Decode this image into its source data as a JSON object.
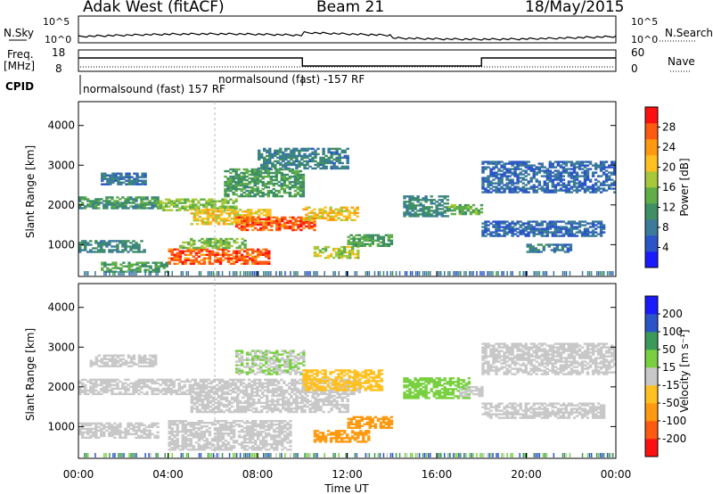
{
  "header": {
    "station": "Adak West (fitACF)",
    "beam": "Beam 21",
    "date": "18/May/2015"
  },
  "summary_panels": {
    "nsky_label": "N.Sky",
    "nsearch_label": "N.Search",
    "noise_ticks": [
      "10^5",
      "10^0"
    ],
    "freq_label": "Freq.",
    "freq_unit": "[MHz]",
    "freq_ticks": [
      "18",
      "8"
    ],
    "nave_label": "Nave",
    "nave_ticks": [
      "60",
      "0"
    ],
    "cpid_label": "CPID",
    "cpid_segments": [
      {
        "text": "normalsound (fast) 157 RF",
        "start_hour": 0,
        "end_hour": 10
      },
      {
        "text": "normalsound (fast) -157 RF",
        "start_hour": 10,
        "end_hour": 18
      }
    ],
    "freq_steps": [
      {
        "from_hour": 0,
        "to_hour": 10,
        "level": "high"
      },
      {
        "from_hour": 10,
        "to_hour": 18,
        "level": "low"
      },
      {
        "from_hour": 18,
        "to_hour": 24,
        "level": "high"
      }
    ]
  },
  "colors": {
    "power_scale": [
      "#1a1aff",
      "#2a55c8",
      "#3a7a9a",
      "#3e8f64",
      "#5fae48",
      "#a8c83a",
      "#ffc020",
      "#ff9a10",
      "#ff5a10",
      "#ff1010"
    ],
    "velocity_scale": [
      "#ff1010",
      "#ff5a10",
      "#ff9a10",
      "#ffc020",
      "#c8c8c8",
      "#78d040",
      "#3a9a58",
      "#2a55c8",
      "#1a1aff"
    ],
    "ground_scatter": "#c8c8c8"
  },
  "chart_data": [
    {
      "type": "heatmap",
      "name": "Power",
      "ylabel": "Slant Range [km]",
      "ylim": [
        200,
        4600
      ],
      "yticks": [
        1000,
        2000,
        3000,
        4000
      ],
      "xlim": [
        0,
        24
      ],
      "colorbar_label": "Power [dB]",
      "colorbar_ticks": [
        "4",
        "8",
        "12",
        "16",
        "20",
        "24",
        "28"
      ],
      "colorbar_range": [
        0,
        30
      ],
      "echo_bands": [
        {
          "t0": 0.0,
          "t1": 3.5,
          "r0": 1900,
          "r1": 2200,
          "value": 9
        },
        {
          "t0": 1.0,
          "t1": 3.0,
          "r0": 2500,
          "r1": 2800,
          "value": 6
        },
        {
          "t0": 3.5,
          "t1": 7.0,
          "r0": 1850,
          "r1": 2150,
          "value": 14
        },
        {
          "t0": 5.0,
          "t1": 8.5,
          "r0": 1500,
          "r1": 1900,
          "value": 18
        },
        {
          "t0": 7.0,
          "t1": 10.5,
          "r0": 1350,
          "r1": 1700,
          "value": 24
        },
        {
          "t0": 10.0,
          "t1": 12.5,
          "r0": 1600,
          "r1": 1950,
          "value": 18
        },
        {
          "t0": 6.5,
          "t1": 10.0,
          "r0": 2200,
          "r1": 2900,
          "value": 10
        },
        {
          "t0": 8.0,
          "t1": 12.0,
          "r0": 2900,
          "r1": 3400,
          "value": 7
        },
        {
          "t0": 4.0,
          "t1": 8.5,
          "r0": 500,
          "r1": 900,
          "value": 24
        },
        {
          "t0": 4.5,
          "t1": 7.5,
          "r0": 900,
          "r1": 1150,
          "value": 13
        },
        {
          "t0": 10.5,
          "t1": 12.5,
          "r0": 650,
          "r1": 950,
          "value": 15
        },
        {
          "t0": 12.0,
          "t1": 14.0,
          "r0": 950,
          "r1": 1250,
          "value": 11
        },
        {
          "t0": 1.0,
          "t1": 4.0,
          "r0": 300,
          "r1": 550,
          "value": 11
        },
        {
          "t0": 0.0,
          "t1": 3.0,
          "r0": 800,
          "r1": 1100,
          "value": 8
        },
        {
          "t0": 14.5,
          "t1": 16.5,
          "r0": 1700,
          "r1": 2200,
          "value": 8
        },
        {
          "t0": 16.5,
          "t1": 18.0,
          "r0": 1750,
          "r1": 2000,
          "value": 12
        },
        {
          "t0": 18.0,
          "t1": 23.5,
          "r0": 1200,
          "r1": 1600,
          "value": 5
        },
        {
          "t0": 20.0,
          "t1": 22.0,
          "r0": 800,
          "r1": 1000,
          "value": 6
        },
        {
          "t0": 18.0,
          "t1": 24.0,
          "r0": 2300,
          "r1": 3100,
          "value": 5
        }
      ]
    },
    {
      "type": "heatmap",
      "name": "Velocity",
      "ylabel": "Slant Range [km]",
      "xlabel": "Time UT",
      "ylim": [
        200,
        4600
      ],
      "yticks": [
        1000,
        2000,
        3000,
        4000
      ],
      "xlim": [
        0,
        24
      ],
      "xticks": [
        "00:00",
        "04:00",
        "08:00",
        "12:00",
        "16:00",
        "20:00",
        "00:00"
      ],
      "colorbar_label": "Velocity [m s⁻¹]",
      "colorbar_ticks": [
        "-200",
        "-100",
        "-50",
        "-15",
        "15",
        "50",
        "100",
        "200"
      ],
      "echo_bands": [
        {
          "t0": 0.0,
          "t1": 12.5,
          "r0": 1800,
          "r1": 2200,
          "value": 0
        },
        {
          "t0": 0.5,
          "t1": 3.5,
          "r0": 2500,
          "r1": 2800,
          "value": 0
        },
        {
          "t0": 5.0,
          "t1": 12.0,
          "r0": 1350,
          "r1": 1800,
          "value": 0
        },
        {
          "t0": 4.0,
          "t1": 9.5,
          "r0": 400,
          "r1": 1150,
          "value": 0
        },
        {
          "t0": 0.0,
          "t1": 3.5,
          "r0": 700,
          "r1": 1100,
          "value": 0
        },
        {
          "t0": 7.0,
          "t1": 10.0,
          "r0": 2300,
          "r1": 2900,
          "value": 10
        },
        {
          "t0": 10.0,
          "t1": 13.5,
          "r0": 1900,
          "r1": 2400,
          "value": -40
        },
        {
          "t0": 10.5,
          "t1": 13.0,
          "r0": 600,
          "r1": 900,
          "value": -70
        },
        {
          "t0": 12.0,
          "t1": 14.0,
          "r0": 950,
          "r1": 1250,
          "value": -60
        },
        {
          "t0": 14.5,
          "t1": 17.5,
          "r0": 1700,
          "r1": 2200,
          "value": 30
        },
        {
          "t0": 17.0,
          "t1": 18.0,
          "r0": 1750,
          "r1": 2000,
          "value": 0
        },
        {
          "t0": 18.0,
          "t1": 23.5,
          "r0": 1200,
          "r1": 1600,
          "value": 0
        },
        {
          "t0": 18.0,
          "t1": 24.0,
          "r0": 2300,
          "r1": 3100,
          "value": 0
        }
      ]
    }
  ]
}
